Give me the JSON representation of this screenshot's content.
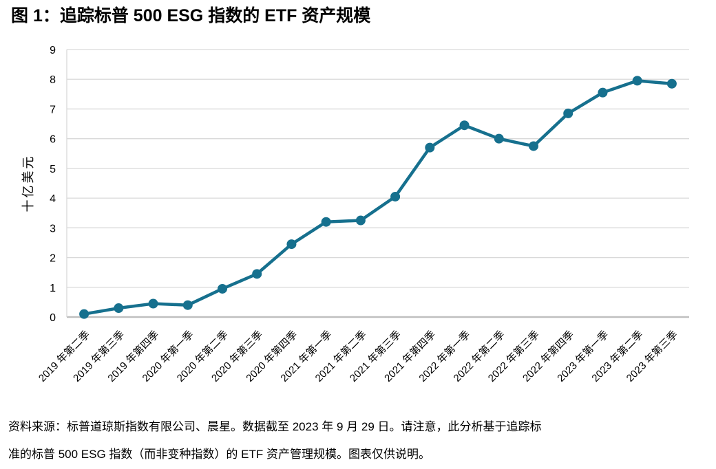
{
  "title": "图 1：追踪标普 500 ESG 指数的 ETF 资产规模",
  "footer": {
    "line1": "资料来源：标普道琼斯指数有限公司、晨星。数据截至 2023 年 9 月 29 日。请注意，此分析基于追踪标",
    "line2": "准的标普 500 ESG 指数（而非变种指数）的 ETF 资产管理规模。图表仅供说明。"
  },
  "colors": {
    "line": "#16708E",
    "marker": "#16708E",
    "grid": "#D9D9D9",
    "axis": "#BFBFBF",
    "text": "#000000",
    "background": "#FFFFFF"
  },
  "chart_data": {
    "type": "line",
    "title": "图 1：追踪标普 500 ESG 指数的 ETF 资产规模",
    "xlabel": "",
    "ylabel": "十亿美元",
    "ylim": [
      0,
      9
    ],
    "yticks": [
      0,
      1,
      2,
      3,
      4,
      5,
      6,
      7,
      8,
      9
    ],
    "grid": "horizontal",
    "legend_position": "none",
    "marker": "circle",
    "x_label_rotation_deg": 45,
    "categories": [
      "2019 年第二季",
      "2019 年第三季",
      "2019 年第四季",
      "2020 年第一季",
      "2020 年第二季",
      "2020 年第三季",
      "2020 年第四季",
      "2021 年第一季",
      "2021 年第二季",
      "2021 年第三季",
      "2021 年第四季",
      "2022 年第一季",
      "2022 年第二季",
      "2022 年第三季",
      "2022 年第四季",
      "2023 年第一季",
      "2023 年第二季",
      "2023 年第三季"
    ],
    "values": [
      0.1,
      0.3,
      0.45,
      0.4,
      0.95,
      1.45,
      2.45,
      3.2,
      3.25,
      4.05,
      5.7,
      6.45,
      6.0,
      5.75,
      6.85,
      7.55,
      7.95,
      7.85
    ]
  }
}
